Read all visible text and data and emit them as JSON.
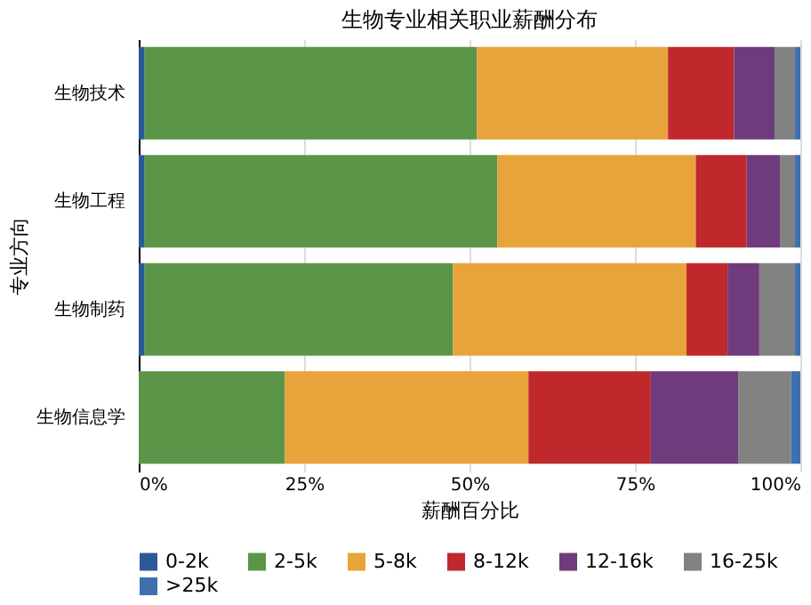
{
  "chart_data": {
    "type": "bar",
    "title": "生物专业相关职业薪酬分布",
    "xlabel": "薪酬百分比",
    "ylabel": "专业方向",
    "orientation": "horizontal",
    "stacked": true,
    "categories": [
      "生物技术",
      "生物工程",
      "生物制药",
      "生物信息学"
    ],
    "series": [
      {
        "name": "0-2k",
        "color": "#2c5a98",
        "values": [
          0.9,
          0.9,
          0.9,
          0
        ]
      },
      {
        "name": "2-5k",
        "color": "#5b9648",
        "values": [
          50.2,
          53.3,
          46.6,
          22.1
        ]
      },
      {
        "name": "5-8k",
        "color": "#e8a33a",
        "values": [
          28.9,
          30.0,
          35.3,
          36.8
        ]
      },
      {
        "name": "8-12k",
        "color": "#c0292c",
        "values": [
          10.0,
          7.7,
          6.2,
          18.5
        ]
      },
      {
        "name": "12-16k",
        "color": "#6f3b7c",
        "values": [
          6.1,
          5.1,
          4.8,
          13.2
        ]
      },
      {
        "name": "16-25k",
        "color": "#828282",
        "values": [
          3.1,
          2.2,
          5.4,
          8.0
        ]
      },
      {
        "name": ">25k",
        "color": "#3e6fae",
        "values": [
          0.8,
          0.8,
          0.8,
          1.4
        ]
      }
    ],
    "xlim": [
      0,
      100
    ],
    "xticks": [
      {
        "value": 0,
        "label": "0%"
      },
      {
        "value": 25,
        "label": "25%"
      },
      {
        "value": 50,
        "label": "50%"
      },
      {
        "value": 75,
        "label": "75%"
      },
      {
        "value": 100,
        "label": "100%"
      }
    ],
    "grid": "x",
    "legend": "bottom"
  }
}
